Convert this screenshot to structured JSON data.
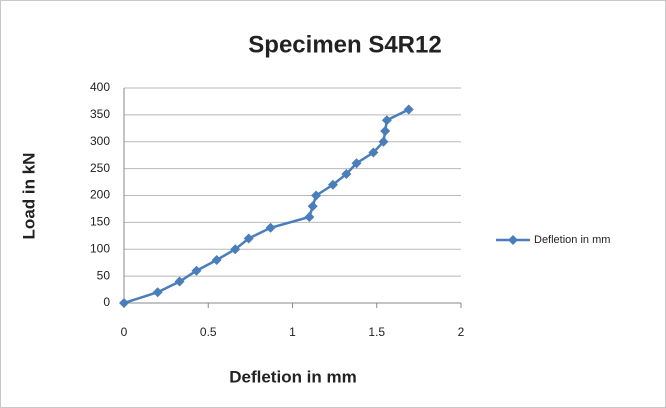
{
  "chart_data": {
    "type": "line",
    "title": "Specimen S4R12",
    "xlabel": "Defletion in mm",
    "ylabel": "Load in kN",
    "x": [
      0,
      0.2,
      0.33,
      0.43,
      0.55,
      0.66,
      0.74,
      0.87,
      1.1,
      1.12,
      1.14,
      1.24,
      1.32,
      1.38,
      1.48,
      1.54,
      1.55,
      1.56,
      1.69
    ],
    "series": [
      {
        "name": "Defletion in mm",
        "color": "#4a7ebb",
        "values": [
          0,
          20,
          40,
          60,
          80,
          100,
          120,
          140,
          160,
          180,
          200,
          220,
          240,
          260,
          280,
          300,
          320,
          340,
          360
        ]
      }
    ],
    "xlim": [
      0,
      2
    ],
    "xticks": [
      0,
      0.5,
      1,
      1.5,
      2
    ],
    "ylim": [
      0,
      400
    ],
    "yticks": [
      0,
      50,
      100,
      150,
      200,
      250,
      300,
      350,
      400
    ],
    "grid": true,
    "legend": "right"
  }
}
